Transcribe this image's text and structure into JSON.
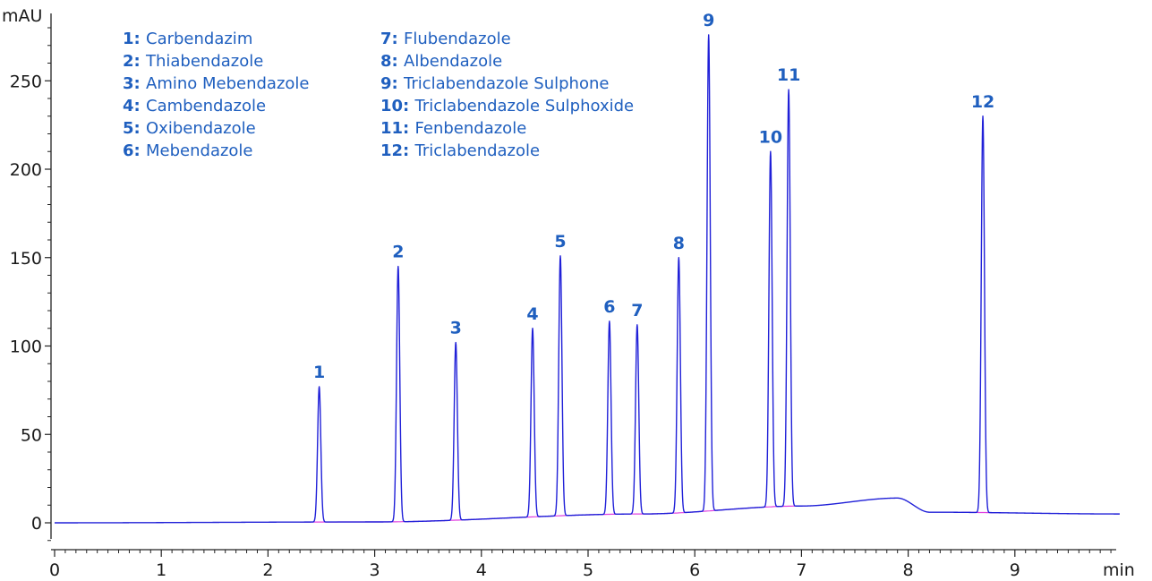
{
  "chart_data": {
    "type": "line",
    "ylabel": "mAU",
    "xlabel": "min",
    "xlim": [
      0,
      10
    ],
    "ylim": [
      -15,
      285
    ],
    "x_ticks": [
      0,
      1,
      2,
      3,
      4,
      5,
      6,
      7,
      8,
      9
    ],
    "y_ticks": [
      0,
      50,
      100,
      150,
      200,
      250
    ],
    "grid": false,
    "colors": {
      "trace": "#2020d8",
      "baseline": "#e040e0",
      "labels": "#1f5fbf",
      "axis": "#222222"
    },
    "series": [
      {
        "peaks": [
          {
            "label": "1",
            "rt": 2.48,
            "height": 77
          },
          {
            "label": "2",
            "rt": 3.22,
            "height": 145
          },
          {
            "label": "3",
            "rt": 3.76,
            "height": 102
          },
          {
            "label": "4",
            "rt": 4.48,
            "height": 110
          },
          {
            "label": "5",
            "rt": 4.74,
            "height": 151
          },
          {
            "label": "6",
            "rt": 5.2,
            "height": 114
          },
          {
            "label": "7",
            "rt": 5.46,
            "height": 112
          },
          {
            "label": "8",
            "rt": 5.85,
            "height": 150
          },
          {
            "label": "9",
            "rt": 6.13,
            "height": 276
          },
          {
            "label": "10",
            "rt": 6.71,
            "height": 210
          },
          {
            "label": "11",
            "rt": 6.88,
            "height": 245
          },
          {
            "label": "12",
            "rt": 8.7,
            "height": 230
          }
        ],
        "baseline_drift": [
          [
            0,
            0
          ],
          [
            3.0,
            0.5
          ],
          [
            5.5,
            5
          ],
          [
            7.0,
            9.5
          ],
          [
            7.9,
            14
          ],
          [
            8.2,
            6
          ],
          [
            10,
            5
          ],
          [
            10.0,
            11
          ]
        ]
      }
    ],
    "legend": [
      {
        "num": "1:",
        "name": "Carbendazim"
      },
      {
        "num": "2:",
        "name": "Thiabendazole"
      },
      {
        "num": "3:",
        "name": "Amino Mebendazole"
      },
      {
        "num": "4:",
        "name": "Cambendazole"
      },
      {
        "num": "5:",
        "name": "Oxibendazole"
      },
      {
        "num": "6:",
        "name": "Mebendazole"
      },
      {
        "num": "7:",
        "name": "Flubendazole"
      },
      {
        "num": "8:",
        "name": "Albendazole"
      },
      {
        "num": "9:",
        "name": "Triclabendazole Sulphone"
      },
      {
        "num": "10:",
        "name": "Triclabendazole Sulphoxide"
      },
      {
        "num": "11:",
        "name": "Fenbendazole"
      },
      {
        "num": "12:",
        "name": "Triclabendazole"
      }
    ],
    "legend_position": "top-left"
  }
}
